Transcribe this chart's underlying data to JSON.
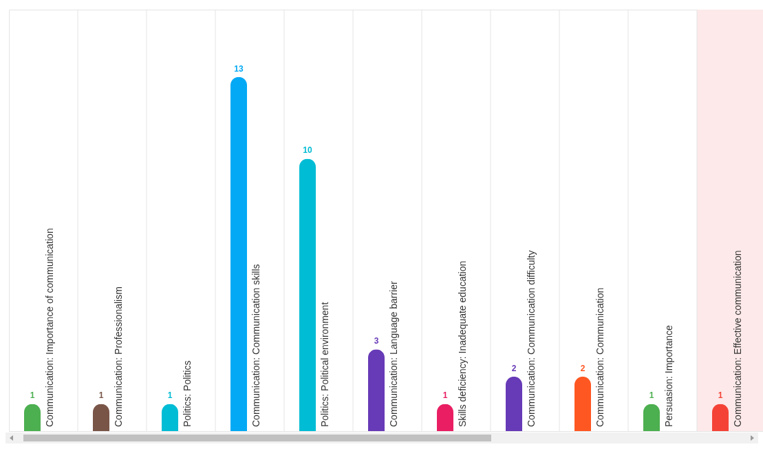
{
  "chart_data": {
    "type": "bar",
    "categories": [
      "Communication: Importance of communication",
      "Communication: Professionalism",
      "Politics: Politics",
      "Communication: Communication skills",
      "Politics: Political environment",
      "Communication: Language barrier",
      "Skills deficiency: Inadequate education",
      "Communication: Communication difficulty",
      "Communication: Communication",
      "Persuasion: Importance",
      "Communication: Effective communication"
    ],
    "values": [
      1,
      1,
      1,
      13,
      10,
      3,
      1,
      2,
      2,
      1,
      1
    ],
    "colors": [
      "#4caf50",
      "#795548",
      "#00bcd4",
      "#03a9f4",
      "#00bcd4",
      "#673ab7",
      "#e91e63",
      "#673ab7",
      "#ff5722",
      "#4caf50",
      "#f44336"
    ],
    "data_labels": true,
    "grid": "x",
    "bands": [
      {
        "axis": "x",
        "from": "Communication: Effective communication",
        "to": "Communication: Effective communication",
        "color": "#fde9e9"
      }
    ]
  }
}
